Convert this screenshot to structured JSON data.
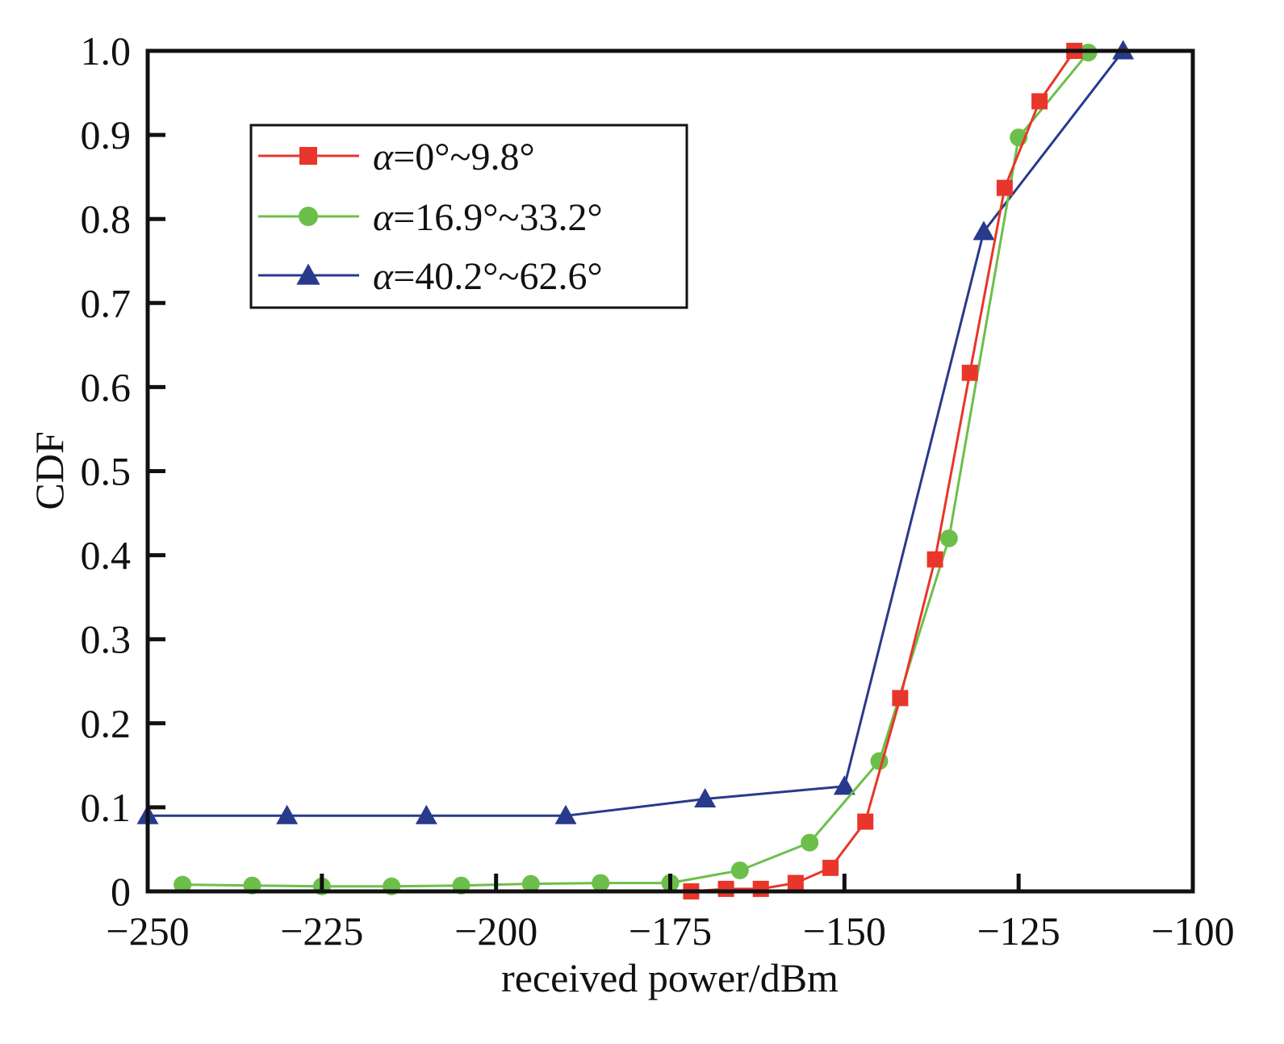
{
  "chart_data": {
    "type": "line",
    "title": "",
    "xlabel": "received power/dBm",
    "ylabel": "CDF",
    "xlim": [
      -250,
      -100
    ],
    "ylim": [
      0,
      1.0
    ],
    "xticks": [
      -250,
      -225,
      -200,
      -175,
      -150,
      -125,
      -100
    ],
    "xtick_labels": [
      "−250",
      "−225",
      "−200",
      "−175",
      "−150",
      "−125",
      "−100"
    ],
    "yticks": [
      0,
      0.1,
      0.2,
      0.3,
      0.4,
      0.5,
      0.6,
      0.7,
      0.8,
      0.9,
      1.0
    ],
    "ytick_labels": [
      "0",
      "0.1",
      "0.2",
      "0.3",
      "0.4",
      "0.5",
      "0.6",
      "0.7",
      "0.8",
      "0.9",
      "1.0"
    ],
    "grid": false,
    "legend_position": "top-left",
    "series": [
      {
        "name": "α=0°~9.8°",
        "name_symbol": "α",
        "name_rest": "=0°~9.8°",
        "color": "#e8362a",
        "marker": "square",
        "x": [
          -172,
          -167,
          -162,
          -157,
          -152,
          -147,
          -142,
          -137,
          -132,
          -127,
          -122,
          -117
        ],
        "y": [
          0.0,
          0.003,
          0.003,
          0.01,
          0.028,
          0.083,
          0.23,
          0.395,
          0.617,
          0.837,
          0.94,
          1.0
        ]
      },
      {
        "name": "α=16.9°~33.2°",
        "name_symbol": "α",
        "name_rest": "=16.9°~33.2°",
        "color": "#6cbf4a",
        "marker": "circle",
        "x": [
          -245,
          -235,
          -225,
          -215,
          -205,
          -195,
          -185,
          -175,
          -165,
          -155,
          -145,
          -135,
          -125,
          -115
        ],
        "y": [
          0.008,
          0.007,
          0.006,
          0.006,
          0.007,
          0.009,
          0.01,
          0.01,
          0.025,
          0.058,
          0.155,
          0.42,
          0.897,
          0.998
        ]
      },
      {
        "name": "α=40.2°~62.6°",
        "name_symbol": "α",
        "name_rest": "=40.2°~62.6°",
        "color": "#283a8c",
        "marker": "triangle",
        "x": [
          -250,
          -230,
          -210,
          -190,
          -170,
          -150,
          -130,
          -110
        ],
        "y": [
          0.09,
          0.09,
          0.09,
          0.09,
          0.11,
          0.125,
          0.785,
          1.0
        ]
      }
    ]
  }
}
